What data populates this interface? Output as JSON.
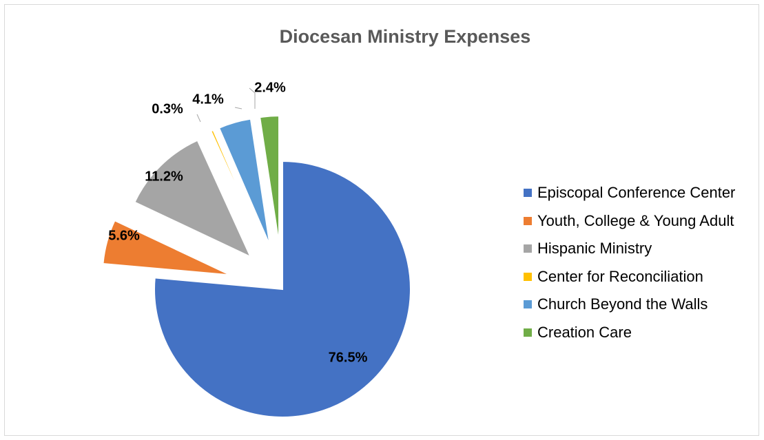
{
  "chart_data": {
    "type": "pie",
    "title": "Diocesan Ministry Expenses",
    "legend_position": "right",
    "slices": [
      {
        "name": "Episcopal Conference Center",
        "value": 76.5,
        "label": "76.5%",
        "color": "#4472C4"
      },
      {
        "name": "Youth, College & Young Adult",
        "value": 5.6,
        "label": "5.6%",
        "color": "#ED7D31"
      },
      {
        "name": "Hispanic Ministry",
        "value": 11.2,
        "label": "11.2%",
        "color": "#A5A5A5"
      },
      {
        "name": "Center for Reconciliation",
        "value": 0.3,
        "label": "0.3%",
        "color": "#FFC000"
      },
      {
        "name": "Church Beyond the Walls",
        "value": 4.1,
        "label": "4.1%",
        "color": "#5B9BD5"
      },
      {
        "name": "Creation Care",
        "value": 2.4,
        "label": "2.4%",
        "color": "#70AD47"
      }
    ]
  }
}
